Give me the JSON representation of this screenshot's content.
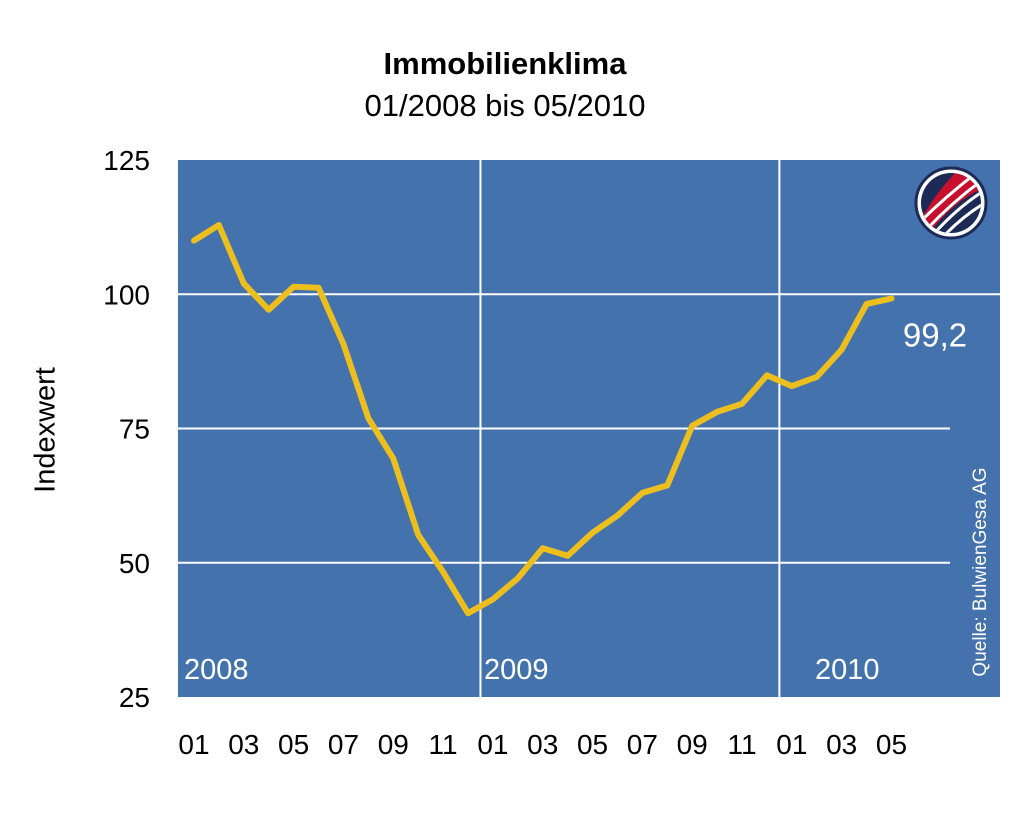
{
  "chart_data": {
    "type": "line",
    "title": "Immobilienklima",
    "subtitle": "01/2008 bis 05/2010",
    "ylabel": "Indexwert",
    "ylim": [
      25,
      125
    ],
    "yticks": [
      "125",
      "100",
      "75",
      "50",
      "25"
    ],
    "grid": true,
    "xtick_labels": [
      "01",
      "03",
      "05",
      "07",
      "09",
      "11",
      "01",
      "03",
      "05",
      "07",
      "09",
      "11",
      "01",
      "03",
      "05"
    ],
    "year_labels": [
      "2008",
      "2009",
      "2010"
    ],
    "series": [
      {
        "x": [
          "2008-01",
          "2008-02",
          "2008-03",
          "2008-04",
          "2008-05",
          "2008-06",
          "2008-07",
          "2008-08",
          "2008-09",
          "2008-10",
          "2008-11",
          "2008-12",
          "2009-01",
          "2009-02",
          "2009-03",
          "2009-04",
          "2009-05",
          "2009-06",
          "2009-07",
          "2009-08",
          "2009-09",
          "2009-10",
          "2009-11",
          "2009-12",
          "2010-01",
          "2010-02",
          "2010-03",
          "2010-04",
          "2010-05"
        ],
        "values": [
          110.0,
          112.9,
          102.0,
          97.1,
          101.4,
          101.2,
          90.7,
          76.9,
          69.4,
          55.2,
          48.3,
          40.6,
          43.2,
          47.1,
          52.7,
          51.3,
          55.6,
          58.8,
          63.0,
          64.4,
          75.5,
          78.1,
          79.6,
          84.9,
          82.9,
          84.6,
          89.7,
          98.2,
          99.2
        ]
      }
    ],
    "end_label": "99,2",
    "source": "Quelle: BulwienGesa AG",
    "colors": {
      "background": "#4472ac",
      "line": "#ecbf1e",
      "grid": "#ffffff"
    }
  }
}
